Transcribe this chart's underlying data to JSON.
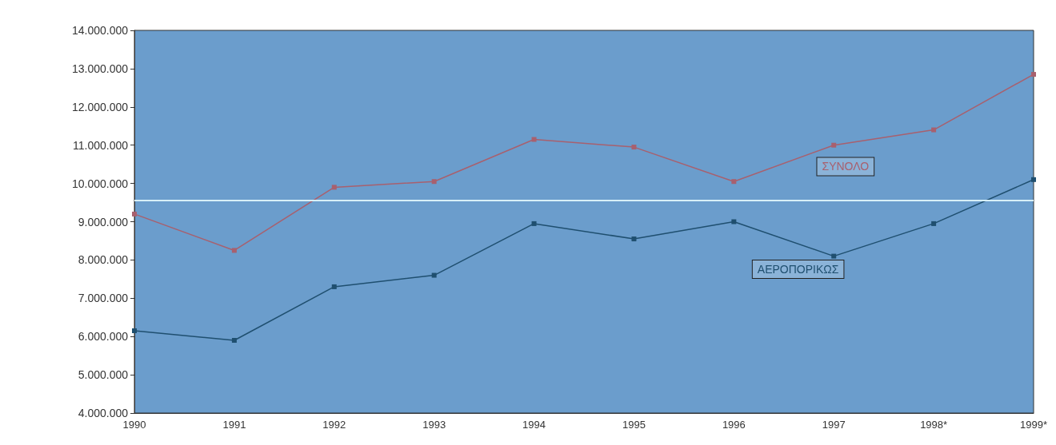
{
  "chart_data": {
    "type": "line",
    "categories": [
      "1990",
      "1991",
      "1992",
      "1993",
      "1994",
      "1995",
      "1996",
      "1997",
      "1998*",
      "1999*"
    ],
    "series": [
      {
        "name": "ΣΥΝΟΛΟ",
        "color": "#a8606e",
        "values": [
          9200000,
          8250000,
          9900000,
          10050000,
          11150000,
          10950000,
          10050000,
          11000000,
          11400000,
          12850000
        ]
      },
      {
        "name": "ΑΕΡΟΠΟΡΙΚΩΣ",
        "color": "#1f4f6f",
        "values": [
          6150000,
          5900000,
          7300000,
          7600000,
          8950000,
          8550000,
          9000000,
          8100000,
          8950000,
          10100000
        ]
      }
    ],
    "ylim": [
      4000000,
      14000000
    ],
    "yticks": [
      {
        "value": 4000000,
        "label": "4.000.000"
      },
      {
        "value": 5000000,
        "label": "5.000.000"
      },
      {
        "value": 6000000,
        "label": "6.000.000"
      },
      {
        "value": 7000000,
        "label": "7.000.000"
      },
      {
        "value": 8000000,
        "label": "8.000.000"
      },
      {
        "value": 9000000,
        "label": "9.000.000"
      },
      {
        "value": 10000000,
        "label": "10.000.000"
      },
      {
        "value": 11000000,
        "label": "11.000.000"
      },
      {
        "value": 12000000,
        "label": "12.000.000"
      },
      {
        "value": 13000000,
        "label": "13.000.000"
      },
      {
        "value": 14000000,
        "label": "14.000.000"
      }
    ],
    "ref_lines": [
      {
        "axis": "y",
        "value": 9550000,
        "color": "#d8f0f8"
      }
    ],
    "marker": "square",
    "grid": false,
    "legend": false
  }
}
